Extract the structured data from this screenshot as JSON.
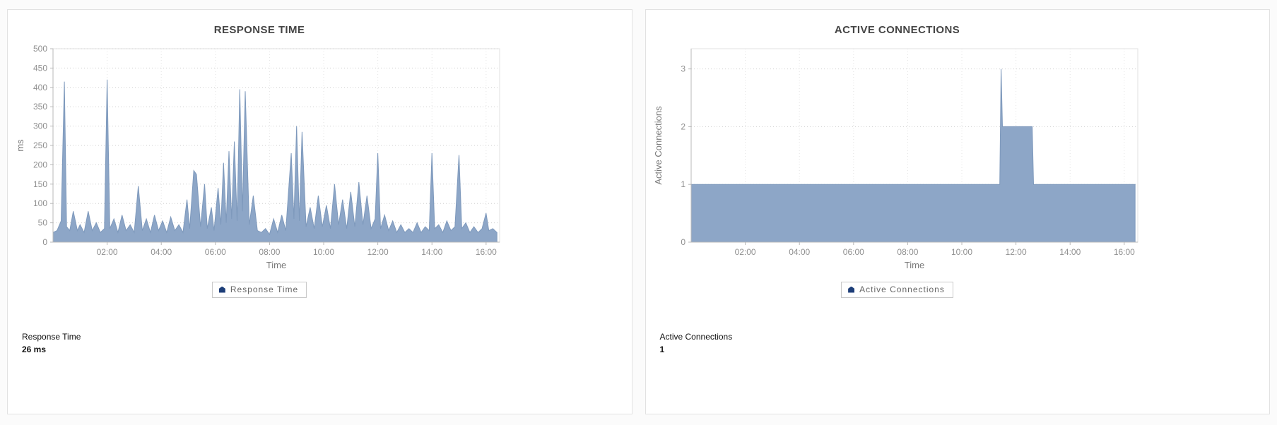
{
  "panels": [
    {
      "title": "RESPONSE TIME",
      "legend_label": "Response Time",
      "summary_label": "Response Time",
      "summary_value": "26 ms"
    },
    {
      "title": "ACTIVE CONNECTIONS",
      "legend_label": "Active Connections",
      "summary_label": "Active Connections",
      "summary_value": "1"
    }
  ],
  "colors": {
    "area_fill": "#8da6c7",
    "area_stroke": "#7e99bc",
    "legend_marker": "#1d3e78",
    "axis": "#b8b8b8",
    "plot_border": "#e2e2e2",
    "grid_h": "#cfcfcf",
    "grid_v": "#e4e4e4",
    "tick_label": "#8f8f8f",
    "axis_label": "#7a7a7a",
    "title": "#454545"
  },
  "chart_data": [
    {
      "type": "area",
      "title": "RESPONSE TIME",
      "xlabel": "Time",
      "ylabel": "ms",
      "xlim": [
        0,
        16.5
      ],
      "ylim": [
        0,
        500
      ],
      "yticks": [
        0,
        50,
        100,
        150,
        200,
        250,
        300,
        350,
        400,
        450,
        500
      ],
      "xticks": [
        2,
        4,
        6,
        8,
        10,
        12,
        14,
        16
      ],
      "xtick_labels": [
        "02:00",
        "04:00",
        "06:00",
        "08:00",
        "10:00",
        "12:00",
        "14:00",
        "16:00"
      ],
      "grid": true,
      "legend_position": "bottom",
      "series": [
        {
          "name": "Response Time",
          "color": "#8da6c7",
          "points": [
            [
              0,
              25
            ],
            [
              0.15,
              30
            ],
            [
              0.3,
              55
            ],
            [
              0.42,
              415
            ],
            [
              0.5,
              40
            ],
            [
              0.62,
              30
            ],
            [
              0.75,
              80
            ],
            [
              0.9,
              30
            ],
            [
              1.0,
              45
            ],
            [
              1.15,
              25
            ],
            [
              1.3,
              80
            ],
            [
              1.45,
              30
            ],
            [
              1.6,
              50
            ],
            [
              1.75,
              25
            ],
            [
              1.9,
              35
            ],
            [
              2.0,
              420
            ],
            [
              2.1,
              35
            ],
            [
              2.25,
              60
            ],
            [
              2.4,
              25
            ],
            [
              2.55,
              70
            ],
            [
              2.7,
              30
            ],
            [
              2.85,
              45
            ],
            [
              3.0,
              25
            ],
            [
              3.15,
              145
            ],
            [
              3.3,
              30
            ],
            [
              3.45,
              60
            ],
            [
              3.6,
              25
            ],
            [
              3.75,
              70
            ],
            [
              3.9,
              30
            ],
            [
              4.05,
              55
            ],
            [
              4.2,
              25
            ],
            [
              4.35,
              65
            ],
            [
              4.5,
              30
            ],
            [
              4.65,
              45
            ],
            [
              4.8,
              25
            ],
            [
              4.95,
              110
            ],
            [
              5.05,
              35
            ],
            [
              5.2,
              185
            ],
            [
              5.3,
              175
            ],
            [
              5.45,
              40
            ],
            [
              5.6,
              150
            ],
            [
              5.7,
              35
            ],
            [
              5.85,
              90
            ],
            [
              5.95,
              30
            ],
            [
              6.1,
              140
            ],
            [
              6.2,
              45
            ],
            [
              6.3,
              205
            ],
            [
              6.4,
              50
            ],
            [
              6.5,
              235
            ],
            [
              6.6,
              60
            ],
            [
              6.7,
              260
            ],
            [
              6.8,
              55
            ],
            [
              6.9,
              395
            ],
            [
              7.0,
              80
            ],
            [
              7.1,
              390
            ],
            [
              7.25,
              45
            ],
            [
              7.4,
              120
            ],
            [
              7.55,
              30
            ],
            [
              7.7,
              25
            ],
            [
              7.85,
              35
            ],
            [
              8.0,
              20
            ],
            [
              8.15,
              60
            ],
            [
              8.3,
              25
            ],
            [
              8.45,
              70
            ],
            [
              8.6,
              30
            ],
            [
              8.8,
              230
            ],
            [
              8.9,
              60
            ],
            [
              9.0,
              300
            ],
            [
              9.1,
              55
            ],
            [
              9.2,
              285
            ],
            [
              9.35,
              40
            ],
            [
              9.5,
              90
            ],
            [
              9.65,
              35
            ],
            [
              9.8,
              120
            ],
            [
              9.95,
              40
            ],
            [
              10.1,
              95
            ],
            [
              10.25,
              35
            ],
            [
              10.4,
              150
            ],
            [
              10.55,
              45
            ],
            [
              10.7,
              110
            ],
            [
              10.85,
              35
            ],
            [
              11.0,
              130
            ],
            [
              11.15,
              40
            ],
            [
              11.3,
              155
            ],
            [
              11.45,
              45
            ],
            [
              11.6,
              120
            ],
            [
              11.75,
              35
            ],
            [
              11.9,
              60
            ],
            [
              12.0,
              230
            ],
            [
              12.1,
              35
            ],
            [
              12.25,
              70
            ],
            [
              12.4,
              30
            ],
            [
              12.55,
              55
            ],
            [
              12.7,
              25
            ],
            [
              12.85,
              45
            ],
            [
              13.0,
              25
            ],
            [
              13.15,
              35
            ],
            [
              13.3,
              25
            ],
            [
              13.45,
              50
            ],
            [
              13.6,
              25
            ],
            [
              13.75,
              40
            ],
            [
              13.9,
              30
            ],
            [
              14.0,
              230
            ],
            [
              14.1,
              35
            ],
            [
              14.25,
              45
            ],
            [
              14.4,
              25
            ],
            [
              14.55,
              55
            ],
            [
              14.7,
              30
            ],
            [
              14.85,
              40
            ],
            [
              15.0,
              225
            ],
            [
              15.1,
              35
            ],
            [
              15.25,
              50
            ],
            [
              15.4,
              25
            ],
            [
              15.55,
              40
            ],
            [
              15.7,
              25
            ],
            [
              15.85,
              35
            ],
            [
              16.0,
              75
            ],
            [
              16.1,
              30
            ],
            [
              16.25,
              35
            ],
            [
              16.4,
              25
            ]
          ]
        }
      ]
    },
    {
      "type": "area",
      "title": "ACTIVE CONNECTIONS",
      "xlabel": "Time",
      "ylabel": "Active Connections",
      "xlim": [
        0,
        16.5
      ],
      "ylim": [
        0,
        3.35
      ],
      "yticks": [
        0,
        1,
        2,
        3
      ],
      "xticks": [
        2,
        4,
        6,
        8,
        10,
        12,
        14,
        16
      ],
      "xtick_labels": [
        "02:00",
        "04:00",
        "06:00",
        "08:00",
        "10:00",
        "12:00",
        "14:00",
        "16:00"
      ],
      "grid": true,
      "legend_position": "bottom",
      "series": [
        {
          "name": "Active Connections",
          "color": "#8da6c7",
          "points": [
            [
              0,
              1
            ],
            [
              11.4,
              1
            ],
            [
              11.45,
              3
            ],
            [
              11.5,
              2
            ],
            [
              12.6,
              2
            ],
            [
              12.65,
              1
            ],
            [
              16.4,
              1
            ]
          ]
        }
      ]
    }
  ]
}
